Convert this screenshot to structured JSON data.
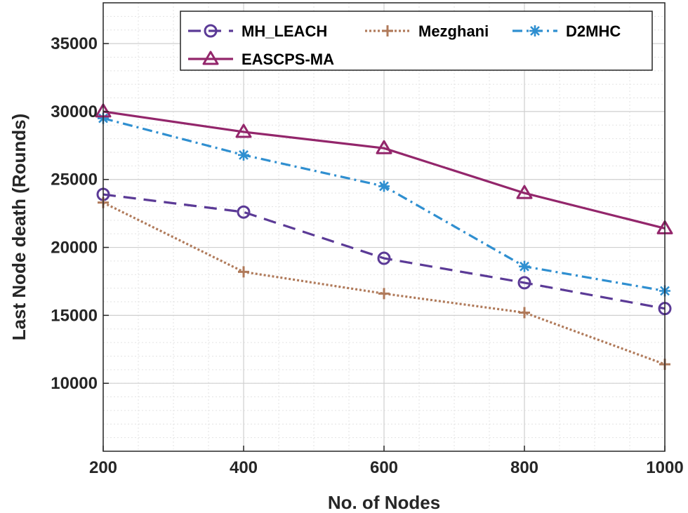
{
  "chart_data": {
    "type": "line",
    "title": "",
    "xlabel": "No. of Nodes",
    "ylabel": "Last Node death (Rounds)",
    "x": [
      200,
      400,
      600,
      800,
      1000
    ],
    "xlim": [
      200,
      1000
    ],
    "ylim": [
      5000,
      38000
    ],
    "xticks": [
      200,
      400,
      600,
      800,
      1000
    ],
    "yticks": [
      10000,
      15000,
      20000,
      25000,
      30000,
      35000
    ],
    "grid": true,
    "minor_grid": true,
    "legend_position": "top-right",
    "series": [
      {
        "name": "MH_LEACH",
        "values": [
          23900,
          22600,
          19200,
          17400,
          15500
        ],
        "color": "#5b3a96",
        "marker": "circle",
        "dash": "dashed"
      },
      {
        "name": "Mezghani",
        "values": [
          23300,
          18200,
          16600,
          15200,
          11400
        ],
        "color": "#b07a5a",
        "marker": "plus",
        "dash": "dotted"
      },
      {
        "name": "D2MHC",
        "values": [
          29500,
          26800,
          24500,
          18600,
          16800
        ],
        "color": "#2f8fd0",
        "marker": "asterisk",
        "dash": "dashdot"
      },
      {
        "name": "EASCPS-MA",
        "values": [
          30000,
          28500,
          27300,
          24000,
          21400
        ],
        "color": "#93266b",
        "marker": "triangle",
        "dash": "solid"
      }
    ]
  }
}
